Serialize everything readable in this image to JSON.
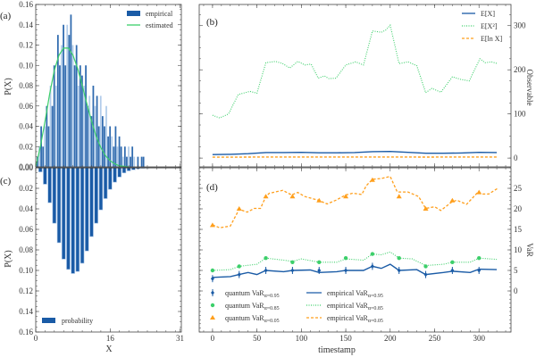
{
  "colors": {
    "blue": "#1a5ba6",
    "light_blue": "#a9c6e8",
    "green": "#3ccf6a",
    "orange": "#ff9f1c"
  },
  "chart_data": [
    {
      "panel": "(a)",
      "type": "bar",
      "xlabel": "",
      "ylabel": "P(X)",
      "xlim": [
        0,
        31.3
      ],
      "ylim": [
        0,
        0.16
      ],
      "yticks": [
        "0.00",
        "0.02",
        "0.04",
        "0.06",
        "0.08",
        "0.10",
        "0.12",
        "0.14",
        "0.16"
      ],
      "legend_position": "top-right",
      "series": [
        {
          "name": "empirical",
          "type": "bar",
          "bin_width": 0.4,
          "x": [
            0.4,
            0.8,
            1.2,
            1.6,
            2.0,
            2.4,
            2.8,
            3.2,
            3.6,
            4.0,
            4.4,
            4.8,
            5.2,
            5.6,
            6.0,
            6.4,
            6.8,
            7.2,
            7.6,
            8.0,
            8.4,
            8.8,
            9.2,
            9.6,
            10.0,
            10.4,
            10.8,
            11.2,
            11.6,
            12.0,
            12.4,
            12.8,
            13.2,
            13.6,
            14.0,
            14.4,
            14.8,
            15.2,
            15.6,
            16.0,
            16.4,
            16.8,
            17.2,
            17.6,
            18.0,
            18.4,
            18.8,
            19.2,
            19.6,
            20.0,
            20.4,
            20.8,
            21.2,
            21.6,
            22.0,
            22.4,
            22.8,
            23.2,
            23.6
          ],
          "values": [
            0.01,
            0.02,
            0.04,
            0.02,
            0.04,
            0.06,
            0.04,
            0.08,
            0.06,
            0.1,
            0.08,
            0.13,
            0.1,
            0.12,
            0.14,
            0.1,
            0.14,
            0.13,
            0.15,
            0.12,
            0.1,
            0.12,
            0.08,
            0.1,
            0.09,
            0.08,
            0.1,
            0.06,
            0.07,
            0.05,
            0.08,
            0.06,
            0.07,
            0.04,
            0.07,
            0.05,
            0.04,
            0.06,
            0.03,
            0.04,
            0.03,
            0.02,
            0.04,
            0.02,
            0.03,
            0.02,
            0.01,
            0.02,
            0.01,
            0.02,
            0.01,
            0.02,
            0.01,
            0.0,
            0.01,
            0.0,
            0.01,
            0.01,
            0.0
          ]
        },
        {
          "name": "estimated",
          "type": "line",
          "x": [
            0,
            1,
            2,
            3,
            4,
            5,
            6,
            7,
            8,
            9,
            10,
            11,
            12,
            13,
            14,
            15,
            16,
            17,
            18,
            19,
            20
          ],
          "values": [
            0,
            0.02,
            0.045,
            0.072,
            0.095,
            0.11,
            0.117,
            0.117,
            0.11,
            0.097,
            0.08,
            0.062,
            0.045,
            0.03,
            0.019,
            0.011,
            0.006,
            0.003,
            0.001,
            0.0005,
            0
          ]
        }
      ]
    },
    {
      "panel": "(c)",
      "type": "bar",
      "xlabel": "X",
      "ylabel": "P(X)",
      "xlim": [
        0,
        31.3
      ],
      "ylim": [
        0,
        0.16
      ],
      "y_inverted": true,
      "xticks": [
        "0",
        "16",
        "31"
      ],
      "yticks": [
        "0.00",
        "0.02",
        "0.04",
        "0.06",
        "0.08",
        "0.10",
        "0.12",
        "0.14",
        "0.16"
      ],
      "legend_position": "bottom-left",
      "series": [
        {
          "name": "probability",
          "x": [
            1,
            2,
            3,
            4,
            5,
            6,
            7,
            8,
            9,
            10,
            11,
            12,
            13,
            14,
            15,
            16,
            17,
            18,
            19,
            20,
            21,
            22,
            23,
            24
          ],
          "values": [
            0.004,
            0.016,
            0.034,
            0.054,
            0.073,
            0.089,
            0.099,
            0.103,
            0.101,
            0.093,
            0.081,
            0.067,
            0.054,
            0.041,
            0.03,
            0.021,
            0.014,
            0.009,
            0.005,
            0.003,
            0.002,
            0.001,
            0.0005,
            0.0003
          ]
        }
      ]
    },
    {
      "panel": "(b)",
      "type": "line",
      "xlabel": "",
      "ylabel": "Observable",
      "xlim": [
        -15,
        336
      ],
      "ylim": [
        -20,
        348
      ],
      "yticks": [
        "0",
        "100",
        "200",
        "300"
      ],
      "legend_position": "top-right",
      "series": [
        {
          "name": "E[X]",
          "style": "solid",
          "x": [
            0,
            20,
            40,
            60,
            80,
            100,
            120,
            140,
            160,
            180,
            200,
            220,
            240,
            260,
            280,
            300,
            320
          ],
          "values": [
            8,
            8.5,
            10,
            12.5,
            12.5,
            13,
            12,
            12,
            12.5,
            14.5,
            15,
            13,
            11,
            11,
            11.5,
            13,
            12.5
          ]
        },
        {
          "name": "E[X²]",
          "style": "dotted",
          "x": [
            0,
            8,
            18,
            29,
            42,
            50,
            60,
            71,
            79,
            87,
            96,
            104,
            111,
            119,
            126,
            131,
            139,
            150,
            161,
            170,
            180,
            190,
            195,
            200,
            210,
            220,
            230,
            240,
            247,
            257,
            270,
            280,
            289,
            301,
            307,
            314,
            321
          ],
          "values": [
            97,
            91,
            100,
            144,
            151,
            147,
            216,
            219,
            214,
            204,
            219,
            211,
            213,
            181,
            186,
            180,
            181,
            211,
            218,
            211,
            288,
            285,
            290,
            301,
            214,
            218,
            209,
            148,
            158,
            149,
            184,
            178,
            175,
            225,
            216,
            218,
            214
          ]
        },
        {
          "name": "E[ln X]",
          "style": "dashed",
          "x": [
            0,
            80,
            160,
            240,
            320
          ],
          "values": [
            2.1,
            2.4,
            2.5,
            2.3,
            2.4
          ]
        }
      ]
    },
    {
      "panel": "(d)",
      "type": "line",
      "xlabel": "timestamp",
      "ylabel": "VaR",
      "xlim": [
        -15,
        336
      ],
      "ylim": [
        -10,
        30
      ],
      "xticks": [
        "0",
        "50",
        "100",
        "150",
        "200",
        "250",
        "300"
      ],
      "yticks": [
        "0",
        "5",
        "10",
        "15",
        "20",
        "25"
      ],
      "legend_position": "bottom-left",
      "series": [
        {
          "name": "quantum VaR",
          "sub": "α=0.95",
          "type": "scatter",
          "marker": "diamond",
          "x": [
            0,
            30,
            60,
            90,
            120,
            150,
            180,
            210,
            240,
            270,
            300
          ],
          "values": [
            3,
            4,
            5,
            5,
            5,
            5,
            6,
            5,
            4,
            5,
            5
          ]
        },
        {
          "name": "quantum VaR",
          "sub": "α=0.85",
          "type": "scatter",
          "marker": "star",
          "x": [
            0,
            30,
            60,
            90,
            120,
            150,
            180,
            210,
            240,
            270,
            300
          ],
          "values": [
            5,
            6,
            8,
            7,
            7,
            8,
            9,
            8,
            6,
            7,
            8
          ]
        },
        {
          "name": "quantum VaR",
          "sub": "α=0.05",
          "type": "scatter",
          "marker": "triangle",
          "x": [
            0,
            30,
            60,
            90,
            120,
            150,
            180,
            210,
            240,
            270,
            300
          ],
          "values": [
            16,
            20,
            23,
            23,
            22,
            23,
            27,
            23,
            20,
            22,
            24
          ]
        },
        {
          "name": "empirical VaR",
          "sub": "α=0.95",
          "type": "line",
          "style": "solid",
          "x": [
            0,
            20,
            30,
            40,
            50,
            60,
            80,
            90,
            110,
            120,
            140,
            150,
            170,
            180,
            190,
            200,
            210,
            230,
            240,
            260,
            270,
            290,
            300,
            320
          ],
          "values": [
            3.3,
            3.5,
            4,
            4.5,
            4,
            5,
            4.7,
            5,
            5.1,
            4.5,
            4.7,
            5,
            5,
            6,
            5.5,
            6.5,
            5,
            5.2,
            4,
            4.5,
            4.8,
            4.5,
            5.3,
            5.2
          ]
        },
        {
          "name": "empirical VaR",
          "sub": "α=0.85",
          "type": "line",
          "style": "dotted",
          "x": [
            0,
            20,
            30,
            50,
            60,
            80,
            90,
            100,
            120,
            140,
            150,
            170,
            180,
            190,
            200,
            210,
            225,
            240,
            260,
            270,
            290,
            300,
            320
          ],
          "values": [
            5,
            5.2,
            6,
            6.5,
            8,
            7.5,
            7.2,
            7.8,
            7,
            7,
            7.8,
            7.5,
            9,
            8.8,
            9.5,
            8,
            7.8,
            6.2,
            6.5,
            7,
            7,
            8,
            7.7
          ]
        },
        {
          "name": "empirical VaR",
          "sub": "α=0.05",
          "type": "line",
          "style": "dashed",
          "x": [
            0,
            8,
            20,
            30,
            39,
            47,
            54,
            60,
            64,
            79,
            89,
            96,
            104,
            119,
            129,
            139,
            150,
            158,
            168,
            173,
            180,
            190,
            200,
            208,
            220,
            232,
            240,
            250,
            257,
            269,
            275,
            286,
            299,
            304,
            311,
            321
          ],
          "values": [
            16.1,
            15.4,
            15.8,
            19.9,
            19.2,
            20.1,
            20.1,
            23.0,
            23.8,
            24.5,
            23.4,
            24.0,
            23.0,
            22.1,
            21.2,
            22.1,
            23.4,
            23.8,
            23.5,
            25.6,
            27.2,
            27.4,
            27.9,
            24.1,
            24.1,
            23.0,
            20.1,
            20.5,
            19.6,
            21.6,
            22.1,
            21.1,
            24.1,
            23.6,
            23.6,
            25.0
          ]
        }
      ]
    }
  ]
}
